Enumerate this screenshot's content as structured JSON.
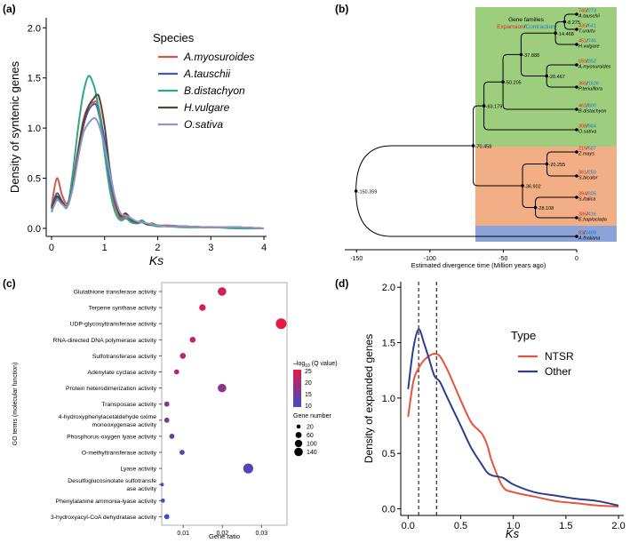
{
  "panels": {
    "a": "(a)",
    "b": "(b)",
    "c": "(c)",
    "d": "(d)"
  },
  "chart_data": [
    {
      "id": "a",
      "type": "line",
      "title": "",
      "xlabel": "Ks",
      "ylabel": "Density of syntenic genes",
      "xlim": [
        -0.1,
        4.05
      ],
      "ylim": [
        -0.08,
        2.1
      ],
      "xticks": [
        0,
        1,
        2,
        3,
        4
      ],
      "yticks": [
        0.0,
        0.5,
        1.0,
        1.5,
        2.0
      ],
      "xtick_labels": [
        "0",
        "1",
        "2",
        "3",
        "4"
      ],
      "ytick_labels": [
        "0.0",
        "0.5",
        "1.0",
        "1.5",
        "2.0"
      ],
      "legend_title": "Species",
      "legend_position": "top-right",
      "x": [
        0.0,
        0.1,
        0.2,
        0.3,
        0.4,
        0.5,
        0.6,
        0.7,
        0.8,
        0.85,
        0.9,
        1.0,
        1.1,
        1.2,
        1.3,
        1.4,
        1.5,
        1.6,
        1.7,
        1.8,
        1.9,
        2.0,
        2.2,
        2.5,
        3.0,
        3.5,
        4.0
      ],
      "series": [
        {
          "name": "A.myosuroides",
          "color": "#d05a4a",
          "values": [
            0.22,
            0.5,
            0.33,
            0.25,
            0.45,
            0.78,
            1.08,
            1.22,
            1.26,
            1.26,
            1.18,
            0.86,
            0.45,
            0.22,
            0.1,
            0.12,
            0.08,
            0.05,
            0.06,
            0.04,
            0.05,
            0.03,
            0.03,
            0.02,
            0.01,
            0.01,
            0.0
          ]
        },
        {
          "name": "A.tauschii",
          "color": "#4a5aa8",
          "values": [
            0.2,
            0.35,
            0.27,
            0.22,
            0.42,
            0.75,
            1.02,
            1.18,
            1.24,
            1.22,
            1.12,
            0.88,
            0.5,
            0.26,
            0.12,
            0.14,
            0.08,
            0.06,
            0.07,
            0.04,
            0.04,
            0.03,
            0.02,
            0.02,
            0.01,
            0.01,
            0.0
          ]
        },
        {
          "name": "B.distachyon",
          "color": "#2aa889",
          "values": [
            0.18,
            0.3,
            0.25,
            0.22,
            0.55,
            1.0,
            1.35,
            1.52,
            1.42,
            1.3,
            1.15,
            0.75,
            0.38,
            0.16,
            0.08,
            0.1,
            0.06,
            0.05,
            0.08,
            0.04,
            0.03,
            0.02,
            0.02,
            0.01,
            0.01,
            0.0,
            0.0
          ]
        },
        {
          "name": "H.vulgare",
          "color": "#5a4238",
          "values": [
            0.2,
            0.32,
            0.26,
            0.23,
            0.42,
            0.76,
            1.05,
            1.22,
            1.3,
            1.33,
            1.3,
            1.02,
            0.58,
            0.28,
            0.13,
            0.15,
            0.09,
            0.06,
            0.06,
            0.04,
            0.04,
            0.03,
            0.02,
            0.02,
            0.01,
            0.01,
            0.0
          ]
        },
        {
          "name": "O.sativa",
          "color": "#8a97c8",
          "values": [
            0.16,
            0.28,
            0.24,
            0.22,
            0.4,
            0.7,
            0.95,
            1.05,
            1.1,
            1.08,
            1.02,
            0.82,
            0.55,
            0.3,
            0.15,
            0.13,
            0.1,
            0.07,
            0.06,
            0.05,
            0.04,
            0.03,
            0.02,
            0.02,
            0.01,
            0.01,
            0.0
          ]
        }
      ]
    },
    {
      "id": "b",
      "type": "tree",
      "xlabel": "Estimated divergence time (Million years ago)",
      "xlim": [
        -158,
        0
      ],
      "xticks": [
        -150,
        -100,
        -50,
        0
      ],
      "xtick_labels": [
        "-150",
        "-100",
        "-50",
        "0"
      ],
      "legend": {
        "title": "Gene families",
        "expansion": "Expansion",
        "slash": "/",
        "contraction": "Contraction"
      },
      "expansion_color": "#e2231a",
      "contraction_color": "#1f77c8",
      "taxa": [
        {
          "name": "A.tauschii",
          "expansion": "740",
          "contraction": "273"
        },
        {
          "name": "T.urartu",
          "expansion": "430",
          "contraction": "641"
        },
        {
          "name": "H.vulgare",
          "expansion": "451",
          "contraction": "746"
        },
        {
          "name": "A.myosuroides",
          "expansion": "559",
          "contraction": "352"
        },
        {
          "name": "P.tenuiflora",
          "expansion": "366",
          "contraction": "1626"
        },
        {
          "name": "B.distachyon",
          "expansion": "462",
          "contraction": "800"
        },
        {
          "name": "O.sativa",
          "expansion": "308",
          "contraction": "984"
        },
        {
          "name": "Z.mays",
          "expansion": "219",
          "contraction": "587"
        },
        {
          "name": "S.bicolor",
          "expansion": "361",
          "contraction": "259"
        },
        {
          "name": "S.italica",
          "expansion": "394",
          "contraction": "305"
        },
        {
          "name": "E.haploclada",
          "expansion": "386",
          "contraction": "416"
        },
        {
          "name": "A.thaliana",
          "expansion": "83",
          "contraction": "3469"
        }
      ],
      "nodes": [
        {
          "age": -8.275,
          "label": "-8.275"
        },
        {
          "age": -14.468,
          "label": "-14.468"
        },
        {
          "age": -20.467,
          "label": "-20.467"
        },
        {
          "age": -37.888,
          "label": "-37.888"
        },
        {
          "age": -50.205,
          "label": "-50.205"
        },
        {
          "age": -63.179,
          "label": "-63.179"
        },
        {
          "age": -70.458,
          "label": "-70.458"
        },
        {
          "age": -20.255,
          "label": "-20.255"
        },
        {
          "age": -28.108,
          "label": "-28.108"
        },
        {
          "age": -36.902,
          "label": "-36.902"
        },
        {
          "age": -150.359,
          "label": "-150.359"
        }
      ],
      "clade_colors": {
        "pooideae": "#9dce7e",
        "panicoideae": "#f2ae84",
        "outgroup": "#8aa3d8"
      }
    },
    {
      "id": "c",
      "type": "scatter",
      "xlabel": "Gene ratio",
      "ylabel": "GO terms (molecular function)",
      "xlim": [
        0.0045,
        0.0365
      ],
      "xticks": [
        0.01,
        0.02,
        0.03
      ],
      "xtick_labels": [
        "0.01",
        "0.02",
        "0.03"
      ],
      "categories": [
        "Glutathione transferase activity",
        "Terpene synthase activity",
        "UDP-glycosyltransferase activity",
        "RNA-directed DNA polymerase activity",
        "Sulfotransferase activity",
        "Adenylate cyclase activity",
        "Protein heterodimerization activity",
        "Transposase activity",
        "4-hydroxyphenylacetaldehyde oxime monooxygenase activity",
        "Phosphorus-oxygen lyase activity",
        "O-methyltransferase activity",
        "Lyase activity",
        "Desulfoglucosinolate sulfotransferase activity",
        "Phenylalanine ammonia-lyase activity",
        "3-hydroxyacyl-CoA dehydratase activity"
      ],
      "gene_ratio": [
        0.0199,
        0.0149,
        0.035,
        0.0124,
        0.0099,
        0.0083,
        0.0199,
        0.0058,
        0.0058,
        0.0071,
        0.0097,
        0.0266,
        0.0046,
        0.0048,
        0.0058
      ],
      "neg_log10_q": [
        23,
        24,
        25,
        21,
        21,
        20,
        17,
        16,
        15,
        14,
        13,
        12,
        11,
        10,
        10
      ],
      "gene_number": [
        80,
        40,
        140,
        30,
        30,
        20,
        80,
        20,
        20,
        20,
        20,
        120,
        5,
        10,
        20
      ],
      "color_legend_title": "-log10 (Q value)",
      "color_legend_prefix": "–log",
      "color_legend_sub": "10",
      "color_legend_suffix": "(Q value)",
      "color_ticks": [
        25,
        20,
        15,
        10
      ],
      "size_legend_title": "Gene number",
      "size_legend": [
        20,
        60,
        100,
        140
      ]
    },
    {
      "id": "d",
      "type": "line",
      "xlabel": "Ks",
      "ylabel": "Density of expanded genes",
      "xlim": [
        -0.07,
        2.05
      ],
      "ylim": [
        -0.06,
        2.05
      ],
      "xticks": [
        0.0,
        0.5,
        1.0,
        1.5,
        2.0
      ],
      "xtick_labels": [
        "0.0",
        "0.5",
        "1.0",
        "1.5",
        "2.0"
      ],
      "yticks": [
        0.0,
        0.5,
        1.0,
        1.5,
        2.0
      ],
      "ytick_labels": [
        "0.0",
        "0.5",
        "1.0",
        "1.5",
        "2.0"
      ],
      "legend_title": "Type",
      "legend_position": "top-right",
      "vlines": [
        0.1,
        0.27
      ],
      "x": [
        0.0,
        0.05,
        0.1,
        0.15,
        0.2,
        0.25,
        0.3,
        0.35,
        0.4,
        0.5,
        0.6,
        0.7,
        0.75,
        0.8,
        0.9,
        1.0,
        1.2,
        1.4,
        1.6,
        1.8,
        2.0
      ],
      "series": [
        {
          "name": "NTSR",
          "color": "#e8533b",
          "values": [
            0.83,
            1.15,
            1.27,
            1.34,
            1.38,
            1.4,
            1.38,
            1.3,
            1.2,
            0.98,
            0.78,
            0.68,
            0.58,
            0.42,
            0.2,
            0.15,
            0.11,
            0.07,
            0.05,
            0.03,
            0.02
          ]
        },
        {
          "name": "Other",
          "color": "#2c3e8f",
          "values": [
            1.08,
            1.45,
            1.62,
            1.5,
            1.35,
            1.2,
            1.15,
            1.05,
            0.95,
            0.75,
            0.55,
            0.4,
            0.33,
            0.3,
            0.28,
            0.22,
            0.15,
            0.12,
            0.09,
            0.07,
            0.03
          ]
        }
      ]
    }
  ]
}
